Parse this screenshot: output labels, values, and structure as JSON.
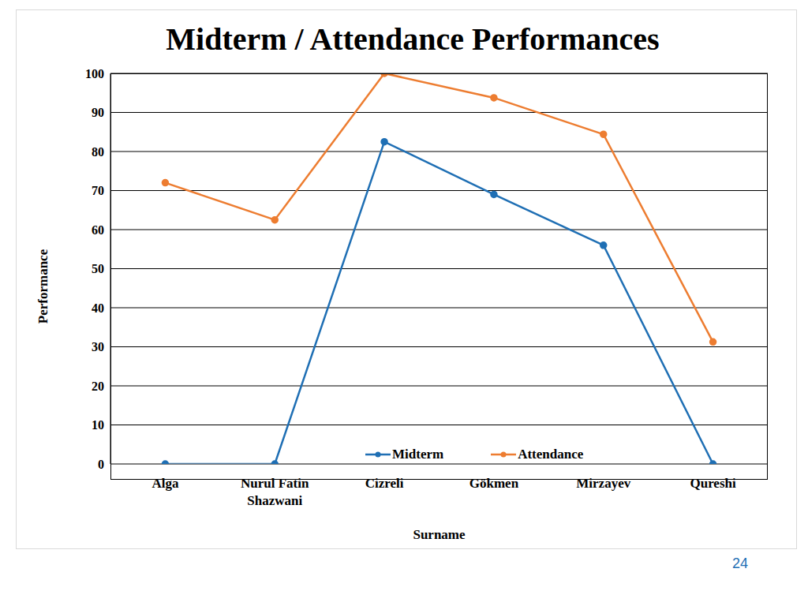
{
  "chart_data": {
    "type": "line",
    "title": "Midterm / Attendance Performances",
    "x_label": "Surname",
    "y_label": "Performance",
    "categories": [
      "Alga",
      "Nurul Fatin Shazwani",
      "Cizreli",
      "Gökmen",
      "Mirzayev",
      "Qureshi"
    ],
    "series": [
      {
        "name": "Midterm",
        "color": "#1f6fb4",
        "marker": "circle",
        "values": [
          0,
          0,
          82.5,
          69,
          56,
          0
        ]
      },
      {
        "name": "Attendance",
        "color": "#ed7d31",
        "marker": "circle",
        "values": [
          72,
          62.5,
          100,
          93.75,
          84.4,
          31.25
        ]
      }
    ],
    "ylim": [
      0,
      100
    ],
    "yticks": [
      0,
      10,
      20,
      30,
      40,
      50,
      60,
      70,
      80,
      90,
      100
    ],
    "grid": true,
    "legend": "bottom",
    "annotations": [
      "24"
    ]
  }
}
